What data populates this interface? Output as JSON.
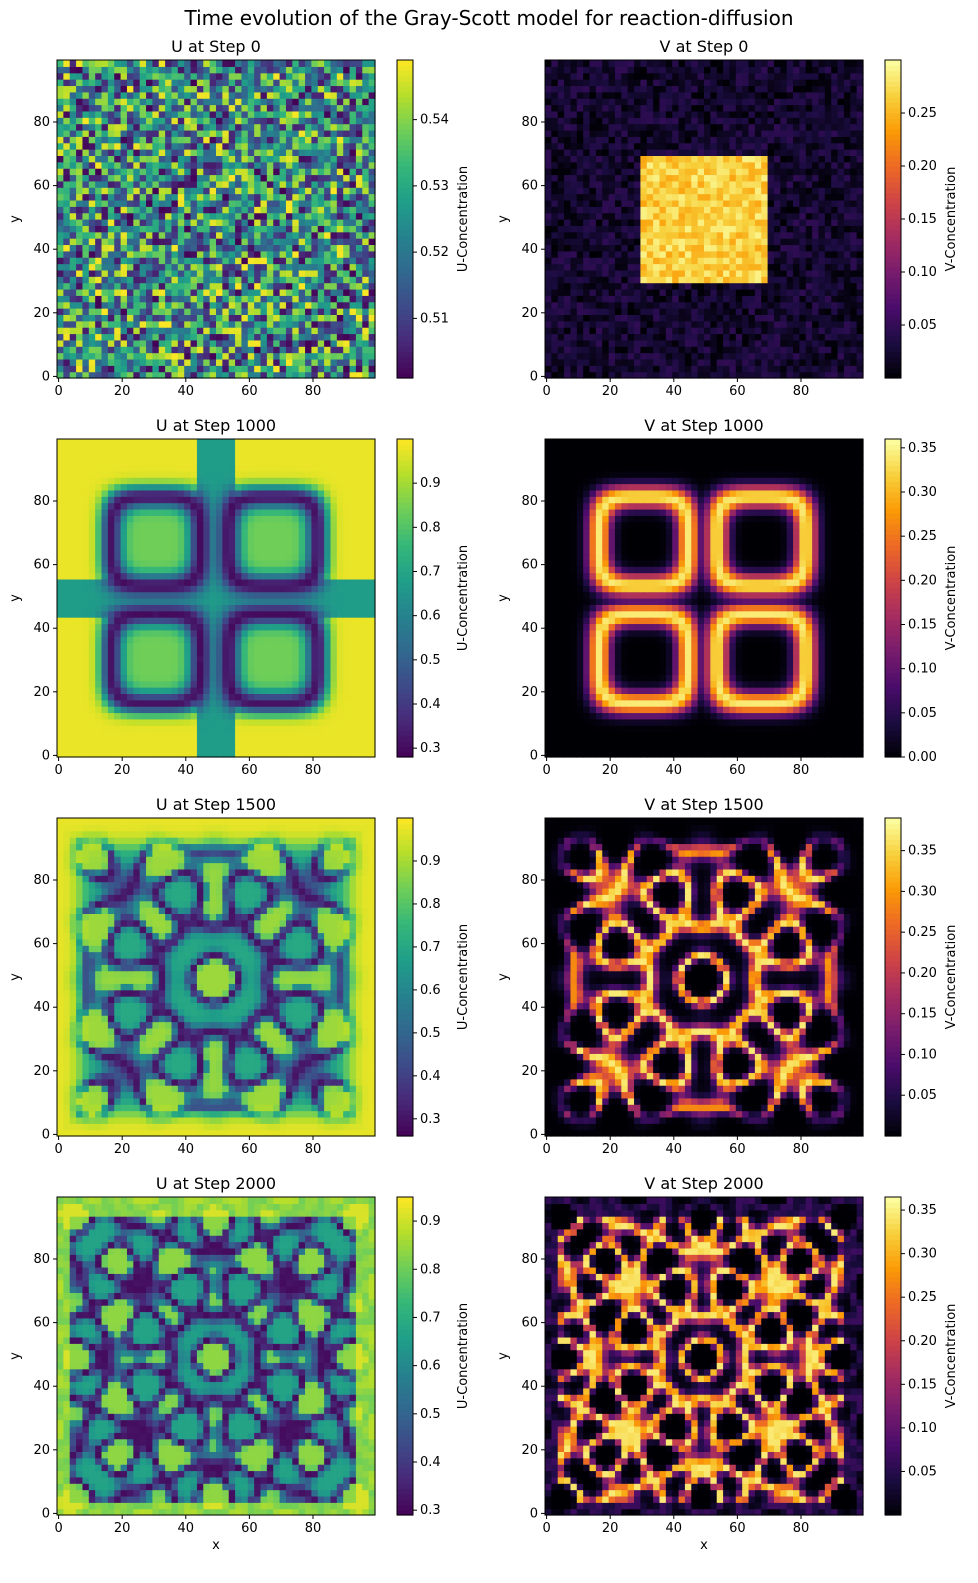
{
  "figure": {
    "title": "Time evolution of the Gray-Scott model for reaction-diffusion"
  },
  "colormaps": {
    "viridis": [
      "#440154",
      "#482878",
      "#3e4a89",
      "#31688e",
      "#26828e",
      "#1f9e89",
      "#35b779",
      "#6ece58",
      "#b5de2b",
      "#fde725"
    ],
    "inferno": [
      "#000004",
      "#1b0c41",
      "#4a0c6b",
      "#781c6d",
      "#a52c60",
      "#cf4446",
      "#ed6925",
      "#fb9b06",
      "#f7d13d",
      "#fcffa4"
    ]
  },
  "chart_data": [
    {
      "type": "heatmap",
      "field": "U",
      "step": 0,
      "pattern": "noise",
      "title": "U at Step 0",
      "xlabel": "",
      "ylabel": "y",
      "xlim": [
        0,
        99
      ],
      "ylim": [
        0,
        99
      ],
      "xticks": [
        0,
        20,
        40,
        60,
        80
      ],
      "yticks": [
        0,
        20,
        40,
        60,
        80
      ],
      "colormap": "viridis",
      "colorbar": {
        "label": "U-Concentration",
        "range": [
          0.501,
          0.549
        ],
        "ticks": [
          0.51,
          0.52,
          0.53,
          0.54
        ]
      }
    },
    {
      "type": "heatmap",
      "field": "V",
      "step": 0,
      "pattern": "square",
      "title": "V at Step 0",
      "xlabel": "",
      "ylabel": "y",
      "xlim": [
        0,
        99
      ],
      "ylim": [
        0,
        99
      ],
      "xticks": [
        0,
        20,
        40,
        60,
        80
      ],
      "yticks": [
        0,
        20,
        40,
        60,
        80
      ],
      "colormap": "inferno",
      "colorbar": {
        "label": "V-Concentration",
        "range": [
          0.0,
          0.3
        ],
        "ticks": [
          0.05,
          0.1,
          0.15,
          0.2,
          0.25
        ]
      }
    },
    {
      "type": "heatmap",
      "field": "U",
      "step": 1000,
      "pattern": "four-rings",
      "title": "U at Step 1000",
      "xlabel": "",
      "ylabel": "y",
      "xlim": [
        0,
        99
      ],
      "ylim": [
        0,
        99
      ],
      "xticks": [
        0,
        20,
        40,
        60,
        80
      ],
      "yticks": [
        0,
        20,
        40,
        60,
        80
      ],
      "colormap": "viridis",
      "colorbar": {
        "label": "U-Concentration",
        "range": [
          0.28,
          1.0
        ],
        "ticks": [
          0.3,
          0.4,
          0.5,
          0.6,
          0.7,
          0.8,
          0.9
        ]
      }
    },
    {
      "type": "heatmap",
      "field": "V",
      "step": 1000,
      "pattern": "four-rings",
      "title": "V at Step 1000",
      "xlabel": "",
      "ylabel": "y",
      "xlim": [
        0,
        99
      ],
      "ylim": [
        0,
        99
      ],
      "xticks": [
        0,
        20,
        40,
        60,
        80
      ],
      "yticks": [
        0,
        20,
        40,
        60,
        80
      ],
      "colormap": "inferno",
      "colorbar": {
        "label": "V-Concentration",
        "range": [
          0.0,
          0.36
        ],
        "ticks": [
          0.0,
          0.05,
          0.1,
          0.15,
          0.2,
          0.25,
          0.3,
          0.35
        ]
      }
    },
    {
      "type": "heatmap",
      "field": "U",
      "step": 1500,
      "pattern": "labyrinth",
      "title": "U at Step 1500",
      "xlabel": "",
      "ylabel": "y",
      "xlim": [
        0,
        99
      ],
      "ylim": [
        0,
        99
      ],
      "xticks": [
        0,
        20,
        40,
        60,
        80
      ],
      "yticks": [
        0,
        20,
        40,
        60,
        80
      ],
      "colormap": "viridis",
      "colorbar": {
        "label": "U-Concentration",
        "range": [
          0.26,
          1.0
        ],
        "ticks": [
          0.3,
          0.4,
          0.5,
          0.6,
          0.7,
          0.8,
          0.9
        ]
      }
    },
    {
      "type": "heatmap",
      "field": "V",
      "step": 1500,
      "pattern": "labyrinth",
      "title": "V at Step 1500",
      "xlabel": "",
      "ylabel": "y",
      "xlim": [
        0,
        99
      ],
      "ylim": [
        0,
        99
      ],
      "xticks": [
        0,
        20,
        40,
        60,
        80
      ],
      "yticks": [
        0,
        20,
        40,
        60,
        80
      ],
      "colormap": "inferno",
      "colorbar": {
        "label": "V-Concentration",
        "range": [
          0.0,
          0.39
        ],
        "ticks": [
          0.05,
          0.1,
          0.15,
          0.2,
          0.25,
          0.3,
          0.35
        ]
      }
    },
    {
      "type": "heatmap",
      "field": "U",
      "step": 2000,
      "pattern": "dense",
      "title": "U at Step 2000",
      "xlabel": "x",
      "ylabel": "y",
      "xlim": [
        0,
        99
      ],
      "ylim": [
        0,
        99
      ],
      "xticks": [
        0,
        20,
        40,
        60,
        80
      ],
      "yticks": [
        0,
        20,
        40,
        60,
        80
      ],
      "colormap": "viridis",
      "colorbar": {
        "label": "U-Concentration",
        "range": [
          0.29,
          0.95
        ],
        "ticks": [
          0.3,
          0.4,
          0.5,
          0.6,
          0.7,
          0.8,
          0.9
        ]
      }
    },
    {
      "type": "heatmap",
      "field": "V",
      "step": 2000,
      "pattern": "dense",
      "title": "V at Step 2000",
      "xlabel": "x",
      "ylabel": "y",
      "xlim": [
        0,
        99
      ],
      "ylim": [
        0,
        99
      ],
      "xticks": [
        0,
        20,
        40,
        60,
        80
      ],
      "yticks": [
        0,
        20,
        40,
        60,
        80
      ],
      "colormap": "inferno",
      "colorbar": {
        "label": "V-Concentration",
        "range": [
          0.0,
          0.365
        ],
        "ticks": [
          0.05,
          0.1,
          0.15,
          0.2,
          0.25,
          0.3,
          0.35
        ]
      }
    }
  ]
}
